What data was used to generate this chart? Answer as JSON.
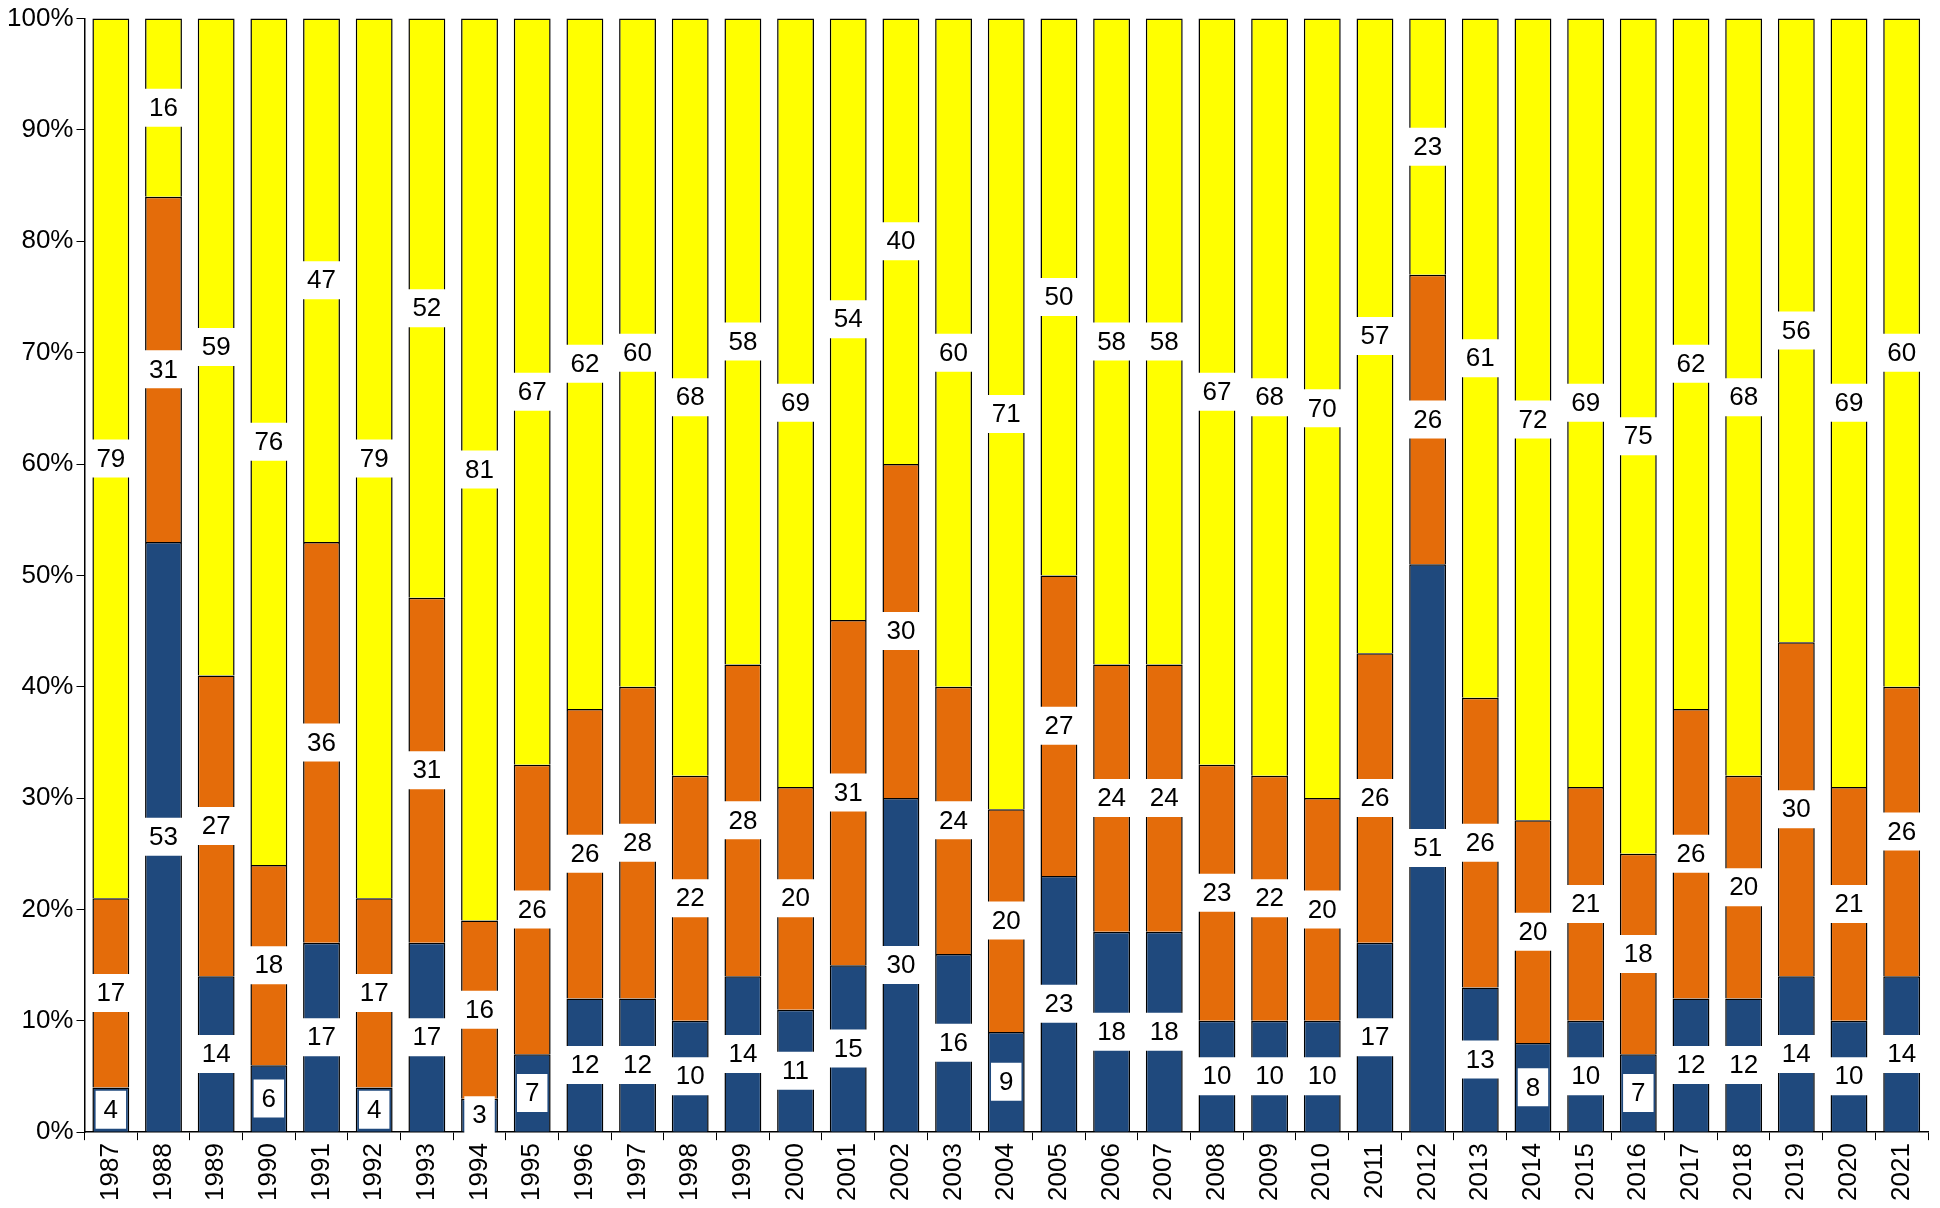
{
  "chart_data": {
    "type": "bar",
    "stacked": true,
    "data_labels": true,
    "categories": [
      "1987",
      "1988",
      "1989",
      "1990",
      "1991",
      "1992",
      "1993",
      "1994",
      "1995",
      "1996",
      "1997",
      "1998",
      "1999",
      "2000",
      "2001",
      "2002",
      "2003",
      "2004",
      "2005",
      "2006",
      "2007",
      "2008",
      "2009",
      "2010",
      "2011",
      "2012",
      "2013",
      "2014",
      "2015",
      "2016",
      "2017",
      "2018",
      "2019",
      "2020",
      "2021"
    ],
    "series": [
      {
        "color": "#1f497d",
        "values": [
          4,
          53,
          14,
          6,
          17,
          4,
          17,
          3,
          7,
          12,
          12,
          10,
          14,
          11,
          15,
          30,
          16,
          9,
          23,
          18,
          18,
          10,
          10,
          10,
          17,
          51,
          13,
          8,
          10,
          7,
          12,
          12,
          14,
          10,
          14
        ]
      },
      {
        "color": "#e46c0a",
        "values": [
          17,
          31,
          27,
          18,
          36,
          17,
          31,
          16,
          26,
          26,
          28,
          22,
          28,
          20,
          31,
          30,
          24,
          20,
          27,
          24,
          24,
          23,
          22,
          20,
          26,
          26,
          26,
          20,
          21,
          18,
          26,
          20,
          30,
          21,
          26
        ]
      },
      {
        "color": "#ffff00",
        "values": [
          79,
          16,
          59,
          76,
          47,
          79,
          52,
          81,
          67,
          62,
          60,
          68,
          58,
          69,
          54,
          40,
          60,
          71,
          50,
          58,
          58,
          67,
          68,
          70,
          57,
          23,
          61,
          72,
          69,
          75,
          62,
          68,
          56,
          69,
          60
        ]
      }
    ],
    "ylim": [
      0,
      100
    ],
    "yticks": [
      {
        "value": 0,
        "label": "0%"
      },
      {
        "value": 10,
        "label": "10%"
      },
      {
        "value": 20,
        "label": "20%"
      },
      {
        "value": 30,
        "label": "30%"
      },
      {
        "value": 40,
        "label": "40%"
      },
      {
        "value": 50,
        "label": "50%"
      },
      {
        "value": 60,
        "label": "60%"
      },
      {
        "value": 70,
        "label": "70%"
      },
      {
        "value": 80,
        "label": "80%"
      },
      {
        "value": 90,
        "label": "90%"
      },
      {
        "value": 100,
        "label": "100%"
      }
    ]
  }
}
